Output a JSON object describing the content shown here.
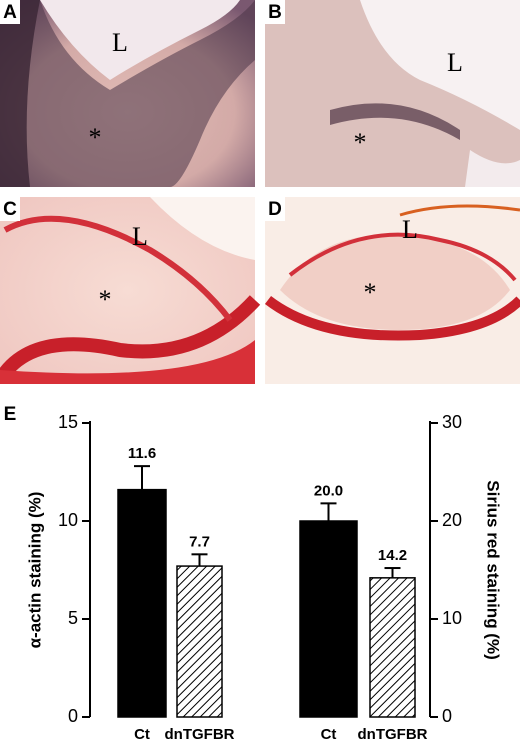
{
  "panels": [
    {
      "letter": "A",
      "labels": [
        "L",
        "*"
      ]
    },
    {
      "letter": "B",
      "labels": [
        "L",
        "*"
      ]
    },
    {
      "letter": "C",
      "labels": [
        "L",
        "*"
      ]
    },
    {
      "letter": "D",
      "labels": [
        "L",
        "*"
      ]
    }
  ],
  "chart_data": {
    "type": "bar",
    "panel_letter": "E",
    "categories": [
      "Ct",
      "dnTGFBR",
      "Ct",
      "dnTGFBR"
    ],
    "category_fills": [
      "solid",
      "hatched",
      "solid",
      "hatched"
    ],
    "color": "#000000",
    "ylabel": "α-actin staining (%)",
    "y2label": "Sirius red staining (%)",
    "series": [
      {
        "values": [
          11.6,
          7.7,
          null,
          null
        ],
        "errors": [
          1.2,
          0.6,
          null,
          null
        ]
      },
      {
        "axis": "y2",
        "values": [
          null,
          null,
          20.0,
          14.2
        ],
        "errors": [
          null,
          null,
          1.8,
          1.0
        ],
        "value_labels": [
          null,
          null,
          "20.0",
          "14.2"
        ]
      }
    ],
    "ylim": [
      0,
      15
    ],
    "yticks": [
      0,
      5,
      10,
      15
    ],
    "y2lim": [
      0,
      30
    ],
    "y2ticks": [
      0,
      10,
      20,
      30
    ]
  }
}
